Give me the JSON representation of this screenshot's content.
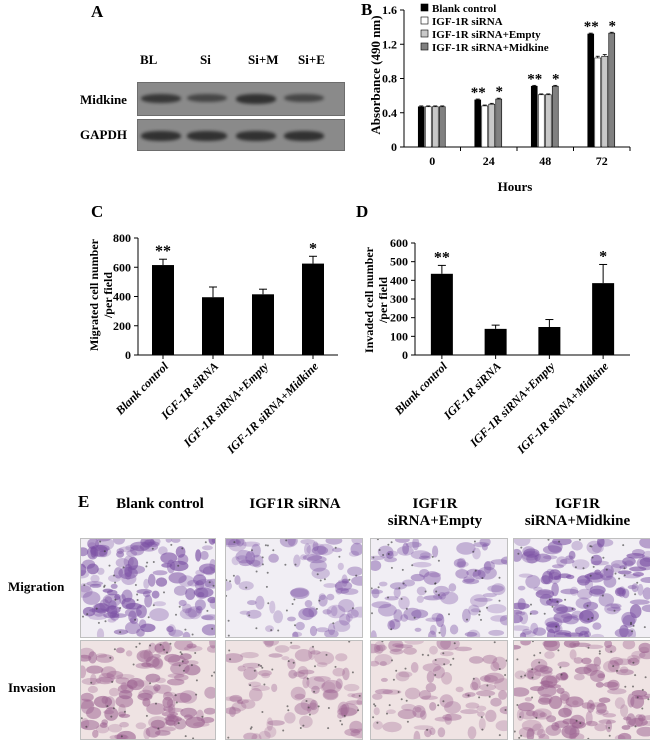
{
  "panel_labels": {
    "a": "A",
    "b": "B",
    "c": "C",
    "d": "D",
    "e": "E"
  },
  "panelA": {
    "lanes": [
      "BL",
      "Si",
      "Si+M",
      "Si+E"
    ],
    "rows": [
      "Midkine",
      "GAPDH"
    ],
    "band_intensity": {
      "Midkine": [
        0.85,
        0.6,
        0.95,
        0.6
      ],
      "GAPDH": [
        0.95,
        0.95,
        0.95,
        0.95
      ]
    }
  },
  "chart_data": [
    {
      "id": "B",
      "type": "bar",
      "ylabel": "Absorbance (490 nm)",
      "xlabel": "Hours",
      "categories": [
        "0",
        "24",
        "48",
        "72"
      ],
      "ylim": [
        0,
        1.6
      ],
      "yticks": [
        "0",
        "0.4",
        "0.8",
        "1.2",
        "1.6"
      ],
      "series": [
        {
          "name": "Blank control",
          "color": "#000000",
          "values": [
            0.47,
            0.55,
            0.71,
            1.32
          ],
          "errors": [
            0.01,
            0.01,
            0.01,
            0.01
          ]
        },
        {
          "name": "IGF-1R siRNA",
          "color": "#ffffff",
          "values": [
            0.47,
            0.48,
            0.61,
            1.04
          ],
          "errors": [
            0.01,
            0.01,
            0.01,
            0.02
          ]
        },
        {
          "name": "IGF-1R siRNA+Empty",
          "color": "#c8c8c8",
          "values": [
            0.47,
            0.5,
            0.61,
            1.06
          ],
          "errors": [
            0.01,
            0.01,
            0.01,
            0.02
          ]
        },
        {
          "name": "IGF-1R siRNA+Midkine",
          "color": "#808080",
          "values": [
            0.47,
            0.56,
            0.71,
            1.33
          ],
          "errors": [
            0.01,
            0.01,
            0.01,
            0.01
          ]
        }
      ],
      "annotations": [
        {
          "category": "24",
          "series": 0,
          "text": "**"
        },
        {
          "category": "24",
          "series": 3,
          "text": "*"
        },
        {
          "category": "48",
          "series": 0,
          "text": "**"
        },
        {
          "category": "48",
          "series": 3,
          "text": "*"
        },
        {
          "category": "72",
          "series": 0,
          "text": "**"
        },
        {
          "category": "72",
          "series": 3,
          "text": "*"
        }
      ]
    },
    {
      "id": "C",
      "type": "bar",
      "ylabel_lines": [
        "Migrated cell number",
        "/per field"
      ],
      "categories": [
        "Blank control",
        "IGF-1R siRNA",
        "IGF-1R siRNA+Empty",
        "IGF-1R siRNA+Midkine"
      ],
      "values": [
        615,
        395,
        415,
        625
      ],
      "errors": [
        40,
        70,
        35,
        50
      ],
      "ylim": [
        0,
        800
      ],
      "yticks": [
        "0",
        "200",
        "400",
        "600",
        "800"
      ],
      "annotations": [
        "**",
        "",
        "",
        "*"
      ]
    },
    {
      "id": "D",
      "type": "bar",
      "ylabel_lines": [
        "Invaded cell number",
        "/per field"
      ],
      "categories": [
        "Blank control",
        "IGF-1R siRNA",
        "IGF-1R siRNA+Empty",
        "IGF-1R siRNA+Midkine"
      ],
      "values": [
        435,
        140,
        150,
        385
      ],
      "errors": [
        45,
        20,
        40,
        100
      ],
      "ylim": [
        0,
        600
      ],
      "yticks": [
        "0",
        "100",
        "200",
        "300",
        "400",
        "500",
        "600"
      ],
      "annotations": [
        "**",
        "",
        "",
        "*"
      ]
    }
  ],
  "panelE": {
    "columns": [
      "Blank control",
      "IGF1R siRNA",
      "IGF1R siRNA+Empty",
      "IGF1R siRNA+Midkine"
    ],
    "rows": [
      "Migration",
      "Invasion"
    ],
    "cell_density": [
      [
        0.95,
        0.45,
        0.5,
        0.9
      ],
      [
        0.8,
        0.4,
        0.45,
        0.85
      ]
    ]
  }
}
